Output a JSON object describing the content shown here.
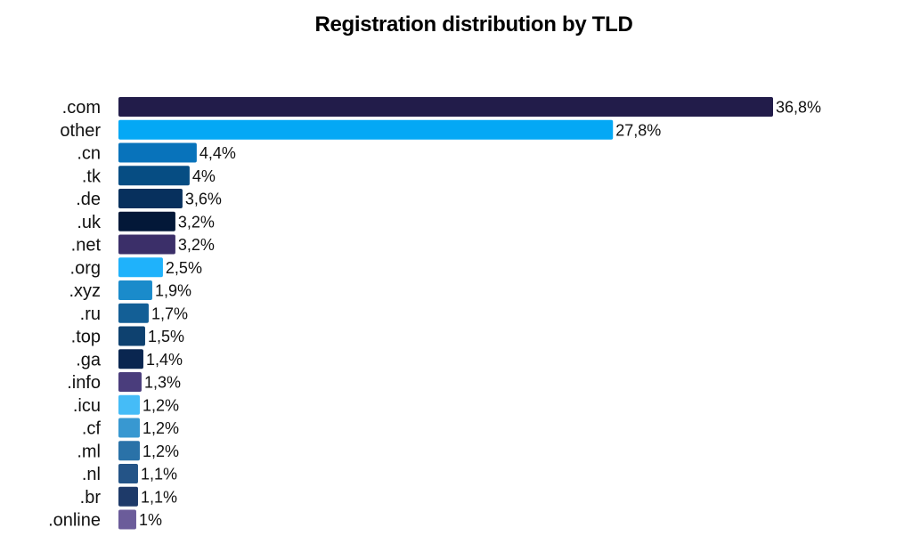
{
  "chart_data": {
    "type": "bar",
    "orientation": "horizontal",
    "title": "Registration distribution by TLD",
    "xlabel": "",
    "ylabel": "",
    "xlim": [
      0,
      36.8
    ],
    "grid": false,
    "legend": "none",
    "categories": [
      ".com",
      "other",
      ".cn",
      ".tk",
      ".de",
      ".uk",
      ".net",
      ".org",
      ".xyz",
      ".ru",
      ".top",
      ".ga",
      ".info",
      ".icu",
      ".cf",
      ".ml",
      ".nl",
      ".br",
      ".online"
    ],
    "values": [
      36.8,
      27.8,
      4.4,
      4.0,
      3.6,
      3.2,
      3.2,
      2.5,
      1.9,
      1.7,
      1.5,
      1.4,
      1.3,
      1.2,
      1.2,
      1.2,
      1.1,
      1.1,
      1.0
    ],
    "value_labels": [
      "36,8%",
      "27,8%",
      "4,4%",
      "4%",
      "3,6%",
      "3,2%",
      "3,2%",
      "2,5%",
      "1,9%",
      "1,7%",
      "1,5%",
      "1,4%",
      "1,3%",
      "1,2%",
      "1,2%",
      "1,2%",
      "1,1%",
      "1,1%",
      "1%"
    ],
    "colors": [
      "#221c4a",
      "#04a8f5",
      "#0873bb",
      "#064d83",
      "#07305d",
      "#031838",
      "#3b2f69",
      "#1fb2fb",
      "#1a8bcb",
      "#135f96",
      "#0e416f",
      "#0a2650",
      "#4a3d7c",
      "#45bcf7",
      "#3898d1",
      "#2a72a8",
      "#245487",
      "#1e3a69",
      "#6b5c9a"
    ]
  }
}
